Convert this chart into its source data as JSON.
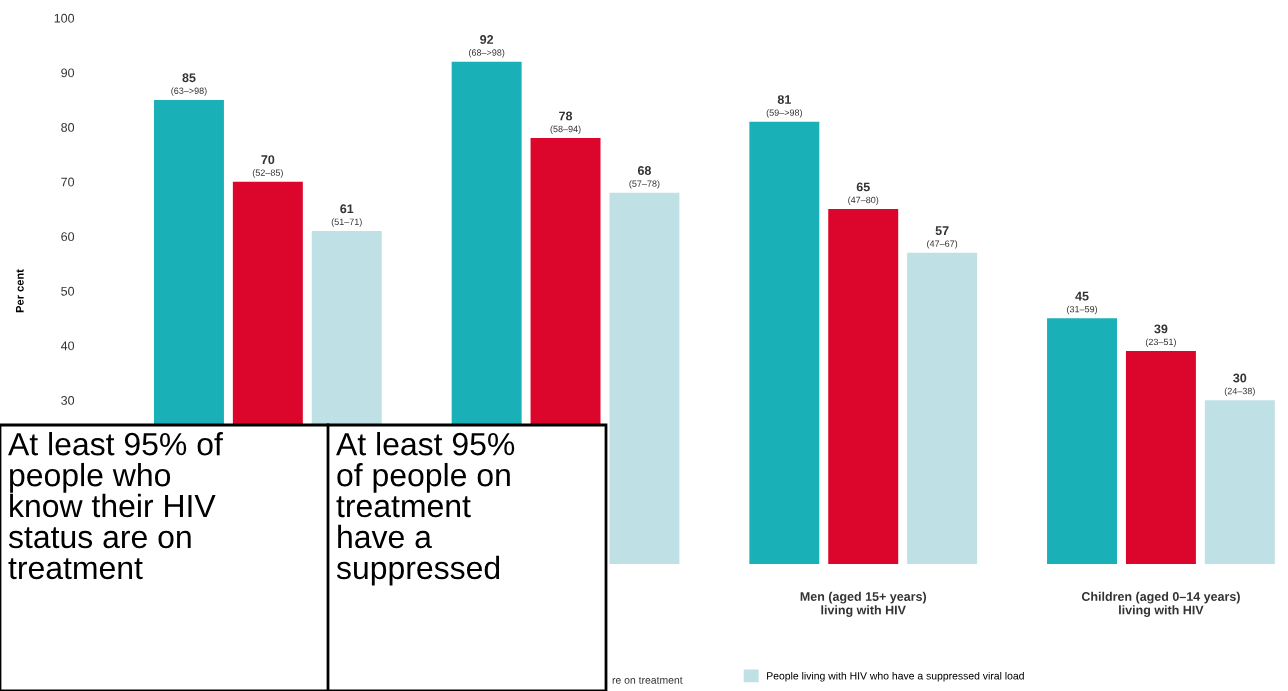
{
  "chart_data": {
    "type": "bar",
    "categories": [
      null,
      null,
      "Men (aged 15+ years)\nliving with HIV",
      "Children (aged 0–14 years)\nliving with HIV"
    ],
    "ylabel": "Per cent",
    "ylim": [
      0,
      100
    ],
    "yticks": [
      30,
      40,
      50,
      60,
      70,
      80,
      90,
      100
    ],
    "series": [
      {
        "color": "#1ab0b8",
        "values": [
          85,
          92,
          81,
          45
        ],
        "value_labels": [
          "85\n(63–>98)",
          "92\n(68–>98)",
          "81\n(59–>98)",
          "45\n(31–59)"
        ]
      },
      {
        "color": "#dc052b",
        "values": [
          70,
          78,
          65,
          39
        ],
        "value_labels": [
          "70\n(52–85)",
          "78\n(58–94)",
          "65\n(47–80)",
          "39\n(23–51)"
        ]
      },
      {
        "name": "People living with HIV who have a suppressed viral load",
        "color": "#bfe0e4",
        "values": [
          61,
          68,
          57,
          30
        ],
        "value_labels": [
          "61\n(51–71)",
          "68\n(57–78)",
          "57\n(47–67)",
          "30\n(24–38)"
        ]
      }
    ],
    "legend": "bottom",
    "grid": false,
    "annotations": [
      "re on treatment",
      "At least 95% of\npeople who\nknow their HIV\nstatus are on\ntreatment",
      "At least 95%\nof people on\ntreatment\nhave a\nsuppressed"
    ]
  }
}
